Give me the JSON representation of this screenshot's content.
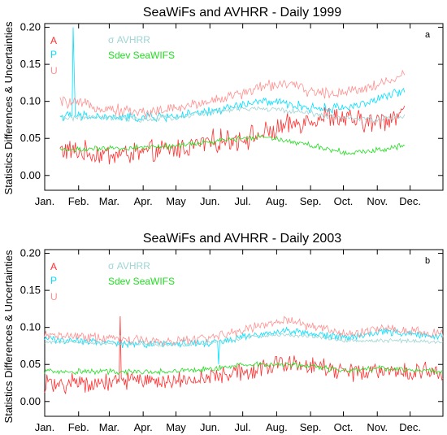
{
  "chart_data": [
    {
      "type": "line",
      "title": "SeaWiFs and AVHRR - Daily 1999",
      "ylabel": "Statistics Differences & Uncertainties",
      "xlabel": "",
      "panel_letter": "a",
      "ylim": [
        -0.02,
        0.205
      ],
      "yticks": [
        "0.00",
        "0.05",
        "0.10",
        "0.15",
        "0.20"
      ],
      "xticks": [
        "Jan.",
        "Feb.",
        "Mar.",
        "Apr.",
        "May",
        "Jun.",
        "Jul.",
        "Aug.",
        "Sep.",
        "Oct.",
        "Nov.",
        "Dec."
      ],
      "xlim": [
        1,
        365
      ],
      "legend": [
        {
          "label": "A",
          "color": "#ff3030"
        },
        {
          "label": "P",
          "color": "#00e0ff"
        },
        {
          "label": "U",
          "color": "#ff9090"
        },
        {
          "label": "σ  AVHRR",
          "color": "#9ed4d4"
        },
        {
          "label": "Sdev SeaWIFS",
          "color": "#22dd22"
        }
      ],
      "data_range_days": [
        15,
        330
      ],
      "series": [
        {
          "name": "A",
          "color": "#ff3030",
          "keys": [
            [
              15,
              0.035
            ],
            [
              40,
              0.03
            ],
            [
              60,
              0.028
            ],
            [
              90,
              0.03
            ],
            [
              120,
              0.035
            ],
            [
              150,
              0.045
            ],
            [
              180,
              0.05
            ],
            [
              200,
              0.055
            ],
            [
              220,
              0.065
            ],
            [
              240,
              0.075
            ],
            [
              260,
              0.08
            ],
            [
              280,
              0.075
            ],
            [
              300,
              0.07
            ],
            [
              320,
              0.08
            ],
            [
              330,
              0.085
            ]
          ],
          "noise": 0.012
        },
        {
          "name": "P",
          "color": "#00e0ff",
          "keys": [
            [
              15,
              0.08
            ],
            [
              40,
              0.08
            ],
            [
              60,
              0.078
            ],
            [
              90,
              0.078
            ],
            [
              120,
              0.08
            ],
            [
              150,
              0.085
            ],
            [
              180,
              0.095
            ],
            [
              200,
              0.1
            ],
            [
              220,
              0.097
            ],
            [
              240,
              0.092
            ],
            [
              260,
              0.09
            ],
            [
              280,
              0.093
            ],
            [
              300,
              0.1
            ],
            [
              320,
              0.11
            ],
            [
              330,
              0.115
            ]
          ],
          "noise": 0.005,
          "spikes": [
            [
              27,
              0.2
            ],
            [
              28,
              0.14
            ]
          ]
        },
        {
          "name": "U",
          "color": "#ff9090",
          "keys": [
            [
              15,
              0.1
            ],
            [
              40,
              0.095
            ],
            [
              60,
              0.09
            ],
            [
              90,
              0.085
            ],
            [
              120,
              0.09
            ],
            [
              150,
              0.1
            ],
            [
              180,
              0.11
            ],
            [
              200,
              0.12
            ],
            [
              220,
              0.125
            ],
            [
              240,
              0.115
            ],
            [
              260,
              0.11
            ],
            [
              280,
              0.115
            ],
            [
              300,
              0.12
            ],
            [
              320,
              0.13
            ],
            [
              330,
              0.135
            ]
          ],
          "noise": 0.006
        },
        {
          "name": "σ AVHRR",
          "color": "#9ed4d4",
          "keys": [
            [
              15,
              0.078
            ],
            [
              60,
              0.078
            ],
            [
              90,
              0.075
            ],
            [
              120,
              0.078
            ],
            [
              150,
              0.085
            ],
            [
              180,
              0.09
            ],
            [
              200,
              0.09
            ],
            [
              220,
              0.088
            ],
            [
              240,
              0.085
            ],
            [
              260,
              0.08
            ],
            [
              280,
              0.078
            ],
            [
              300,
              0.075
            ],
            [
              320,
              0.078
            ],
            [
              330,
              0.08
            ]
          ],
          "noise": 0.003
        },
        {
          "name": "Sdev SeaWIFS",
          "color": "#22dd22",
          "keys": [
            [
              15,
              0.035
            ],
            [
              40,
              0.035
            ],
            [
              60,
              0.036
            ],
            [
              90,
              0.038
            ],
            [
              120,
              0.04
            ],
            [
              150,
              0.045
            ],
            [
              180,
              0.05
            ],
            [
              200,
              0.053
            ],
            [
              220,
              0.048
            ],
            [
              240,
              0.042
            ],
            [
              260,
              0.036
            ],
            [
              280,
              0.03
            ],
            [
              300,
              0.033
            ],
            [
              320,
              0.038
            ],
            [
              330,
              0.042
            ]
          ],
          "noise": 0.003
        }
      ]
    },
    {
      "type": "line",
      "title": "SeaWiFs and AVHRR - Daily 2003",
      "ylabel": "Statistics Differences & Uncertainties",
      "xlabel": "",
      "panel_letter": "b",
      "ylim": [
        -0.02,
        0.205
      ],
      "yticks": [
        "0.00",
        "0.05",
        "0.10",
        "0.15",
        "0.20"
      ],
      "xticks": [
        "Jan.",
        "Feb.",
        "Mar.",
        "Apr.",
        "May",
        "Jun.",
        "Jul.",
        "Aug.",
        "Sep.",
        "Oct.",
        "Nov.",
        "Dec."
      ],
      "xlim": [
        1,
        365
      ],
      "legend": [
        {
          "label": "A",
          "color": "#ff3030"
        },
        {
          "label": "P",
          "color": "#00e0ff"
        },
        {
          "label": "U",
          "color": "#ff9090"
        },
        {
          "label": "σ  AVHRR",
          "color": "#9ed4d4"
        },
        {
          "label": "Sdev SeaWIFS",
          "color": "#22dd22"
        }
      ],
      "data_range_days": [
        1,
        365
      ],
      "series": [
        {
          "name": "A",
          "color": "#ff3030",
          "keys": [
            [
              1,
              0.025
            ],
            [
              40,
              0.025
            ],
            [
              70,
              0.025
            ],
            [
              100,
              0.028
            ],
            [
              130,
              0.03
            ],
            [
              160,
              0.035
            ],
            [
              190,
              0.042
            ],
            [
              220,
              0.05
            ],
            [
              250,
              0.047
            ],
            [
              280,
              0.04
            ],
            [
              310,
              0.04
            ],
            [
              340,
              0.04
            ],
            [
              365,
              0.038
            ]
          ],
          "noise": 0.01,
          "spikes": [
            [
              70,
              0.115
            ]
          ]
        },
        {
          "name": "P",
          "color": "#00e0ff",
          "keys": [
            [
              1,
              0.085
            ],
            [
              40,
              0.08
            ],
            [
              70,
              0.078
            ],
            [
              100,
              0.078
            ],
            [
              130,
              0.078
            ],
            [
              160,
              0.08
            ],
            [
              190,
              0.09
            ],
            [
              220,
              0.095
            ],
            [
              250,
              0.09
            ],
            [
              280,
              0.085
            ],
            [
              310,
              0.095
            ],
            [
              340,
              0.09
            ],
            [
              365,
              0.088
            ]
          ],
          "noise": 0.004,
          "spikes": [
            [
              160,
              0.05
            ]
          ]
        },
        {
          "name": "U",
          "color": "#ff9090",
          "keys": [
            [
              1,
              0.09
            ],
            [
              40,
              0.087
            ],
            [
              70,
              0.085
            ],
            [
              100,
              0.082
            ],
            [
              130,
              0.082
            ],
            [
              160,
              0.088
            ],
            [
              190,
              0.1
            ],
            [
              220,
              0.11
            ],
            [
              250,
              0.1
            ],
            [
              280,
              0.09
            ],
            [
              310,
              0.1
            ],
            [
              340,
              0.095
            ],
            [
              365,
              0.09
            ]
          ],
          "noise": 0.005
        },
        {
          "name": "σ AVHRR",
          "color": "#9ed4d4",
          "keys": [
            [
              1,
              0.08
            ],
            [
              40,
              0.08
            ],
            [
              70,
              0.078
            ],
            [
              100,
              0.077
            ],
            [
              130,
              0.077
            ],
            [
              160,
              0.08
            ],
            [
              190,
              0.088
            ],
            [
              220,
              0.09
            ],
            [
              250,
              0.087
            ],
            [
              280,
              0.082
            ],
            [
              310,
              0.082
            ],
            [
              340,
              0.082
            ],
            [
              365,
              0.08
            ]
          ],
          "noise": 0.002
        },
        {
          "name": "Sdev SeaWIFS",
          "color": "#22dd22",
          "keys": [
            [
              1,
              0.04
            ],
            [
              40,
              0.04
            ],
            [
              70,
              0.04
            ],
            [
              100,
              0.04
            ],
            [
              130,
              0.042
            ],
            [
              160,
              0.045
            ],
            [
              190,
              0.05
            ],
            [
              220,
              0.05
            ],
            [
              250,
              0.046
            ],
            [
              280,
              0.042
            ],
            [
              310,
              0.045
            ],
            [
              340,
              0.042
            ],
            [
              365,
              0.04
            ]
          ],
          "noise": 0.003
        }
      ]
    }
  ]
}
